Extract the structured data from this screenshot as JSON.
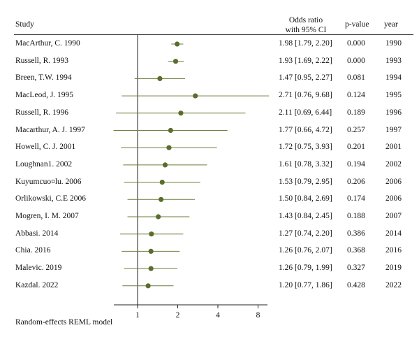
{
  "chart_data": {
    "type": "forest",
    "measure": "Odds ratio",
    "header": {
      "study": "Study",
      "or_line1": "Odds ratio",
      "or_line2": "with 95% CI",
      "pvalue": "p-value",
      "year": "year"
    },
    "x_scale": "log2",
    "xlim": [
      0.5,
      10
    ],
    "ticks": [
      1,
      2,
      4,
      8
    ],
    "reference_line": 1,
    "studies": [
      {
        "study": "MacArthur, C. 1990",
        "or": 1.98,
        "lo": 1.79,
        "hi": 2.2,
        "ci_text": "1.98 [1.79, 2.20]",
        "p": "0.000",
        "year": "1990"
      },
      {
        "study": "Russell, R. 1993",
        "or": 1.93,
        "lo": 1.69,
        "hi": 2.22,
        "ci_text": "1.93 [1.69, 2.22]",
        "p": "0.000",
        "year": "1993"
      },
      {
        "study": "Breen, T.W. 1994",
        "or": 1.47,
        "lo": 0.95,
        "hi": 2.27,
        "ci_text": "1.47 [0.95, 2.27]",
        "p": "0.081",
        "year": "1994"
      },
      {
        "study": "MacLeod, J. 1995",
        "or": 2.71,
        "lo": 0.76,
        "hi": 9.68,
        "ci_text": "2.71 [0.76, 9.68]",
        "p": "0.124",
        "year": "1995"
      },
      {
        "study": "Russell, R. 1996",
        "or": 2.11,
        "lo": 0.69,
        "hi": 6.44,
        "ci_text": "2.11 [0.69, 6.44]",
        "p": "0.189",
        "year": "1996"
      },
      {
        "study": "Macarthur, A. J. 1997",
        "or": 1.77,
        "lo": 0.66,
        "hi": 4.72,
        "ci_text": "1.77 [0.66, 4.72]",
        "p": "0.257",
        "year": "1997"
      },
      {
        "study": "Howell, C. J. 2001",
        "or": 1.72,
        "lo": 0.75,
        "hi": 3.93,
        "ci_text": "1.72 [0.75, 3.93]",
        "p": "0.201",
        "year": "2001"
      },
      {
        "study": "Loughnan1. 2002",
        "or": 1.61,
        "lo": 0.78,
        "hi": 3.32,
        "ci_text": "1.61 [0.78, 3.32]",
        "p": "0.194",
        "year": "2002"
      },
      {
        "study": "Kuyumcuo¤lu. 2006",
        "or": 1.53,
        "lo": 0.79,
        "hi": 2.95,
        "ci_text": "1.53 [0.79, 2.95]",
        "p": "0.206",
        "year": "2006"
      },
      {
        "study": "Orlikowski, C.E 2006",
        "or": 1.5,
        "lo": 0.84,
        "hi": 2.69,
        "ci_text": "1.50 [0.84, 2.69]",
        "p": "0.174",
        "year": "2006"
      },
      {
        "study": "Mogren, I. M. 2007",
        "or": 1.43,
        "lo": 0.84,
        "hi": 2.45,
        "ci_text": "1.43 [0.84, 2.45]",
        "p": "0.188",
        "year": "2007"
      },
      {
        "study": "Abbasi. 2014",
        "or": 1.27,
        "lo": 0.74,
        "hi": 2.2,
        "ci_text": "1.27 [0.74, 2.20]",
        "p": "0.386",
        "year": "2014"
      },
      {
        "study": "Chia. 2016",
        "or": 1.26,
        "lo": 0.76,
        "hi": 2.07,
        "ci_text": "1.26 [0.76, 2.07]",
        "p": "0.368",
        "year": "2016"
      },
      {
        "study": "Malevic. 2019",
        "or": 1.26,
        "lo": 0.79,
        "hi": 1.99,
        "ci_text": "1.26 [0.79, 1.99]",
        "p": "0.327",
        "year": "2019"
      },
      {
        "study": "Kazdal. 2022",
        "or": 1.2,
        "lo": 0.77,
        "hi": 1.86,
        "ci_text": "1.20 [0.77, 1.86]",
        "p": "0.428",
        "year": "2022"
      }
    ],
    "footnote": "Random-effects REML model",
    "colors": {
      "marker": "#5a6e2c",
      "ci_line": "#6b7d3a",
      "axis": "#222222",
      "text": "#111111"
    }
  }
}
